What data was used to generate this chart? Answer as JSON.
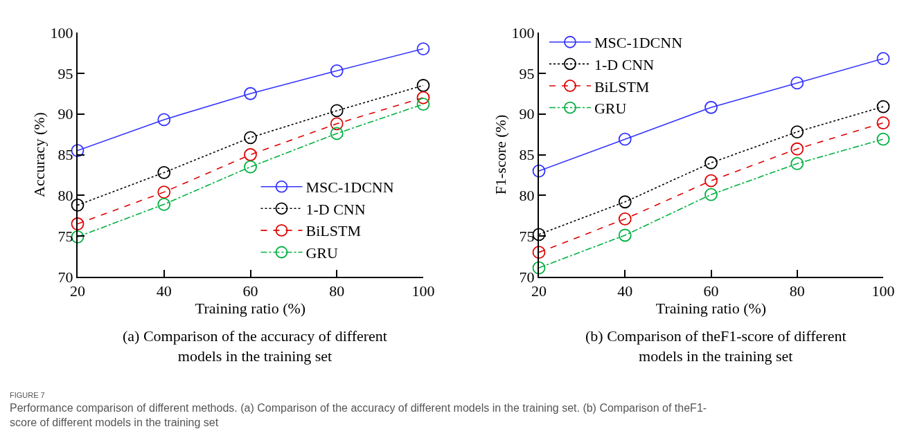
{
  "chart_data": [
    {
      "type": "line",
      "xlabel": "Training ratio (%)",
      "ylabel": "Accuracy (%)",
      "x": [
        20,
        40,
        60,
        80,
        100
      ],
      "xlim": [
        20,
        100
      ],
      "xticks": [
        20,
        40,
        60,
        80,
        100
      ],
      "ylim": [
        70,
        100
      ],
      "yticks": [
        70,
        75,
        80,
        85,
        90,
        95,
        100
      ],
      "grid": false,
      "legend": "bottom right",
      "marker": "circle",
      "series": [
        {
          "name": "MSC-1DCNN",
          "color": "#3333ff",
          "line_style": "solid",
          "values": [
            85.5,
            89.3,
            92.5,
            95.3,
            98.0
          ]
        },
        {
          "name": "1-D CNN",
          "color": "#000000",
          "line_style": "dotted",
          "values": [
            78.8,
            82.8,
            87.1,
            90.4,
            93.5
          ]
        },
        {
          "name": "BiLSTM",
          "color": "#e00000",
          "line_style": "dashed",
          "values": [
            76.5,
            80.4,
            85.0,
            88.8,
            92.0
          ]
        },
        {
          "name": "GRU",
          "color": "#00b040",
          "line_style": "dashdot",
          "values": [
            74.9,
            78.9,
            83.5,
            87.6,
            91.2
          ]
        }
      ],
      "annotations": [
        "(a) Comparison of the accuracy of different\nmodels in the training set",
        "FIGURE 7",
        "Performance comparison of different methods. (a) Comparison of the accuracy of different models in the training set. (b) Comparison of theF1-\nscore of different models in the training set"
      ]
    },
    {
      "type": "line",
      "xlabel": "Training ratio (%)",
      "ylabel": "F1-score (%)",
      "x": [
        20,
        40,
        60,
        80,
        100
      ],
      "xlim": [
        20,
        100
      ],
      "xticks": [
        20,
        40,
        60,
        80,
        100
      ],
      "ylim": [
        70,
        100
      ],
      "yticks": [
        70,
        75,
        80,
        85,
        90,
        95,
        100
      ],
      "grid": false,
      "legend": "top left",
      "marker": "circle",
      "series": [
        {
          "name": "MSC-1DCNN",
          "color": "#3333ff",
          "line_style": "solid",
          "values": [
            83.0,
            86.9,
            90.8,
            93.8,
            96.8
          ]
        },
        {
          "name": "1-D CNN",
          "color": "#000000",
          "line_style": "dotted",
          "values": [
            75.2,
            79.2,
            84.0,
            87.8,
            90.9
          ]
        },
        {
          "name": "BiLSTM",
          "color": "#e00000",
          "line_style": "dashed",
          "values": [
            73.0,
            77.1,
            81.8,
            85.7,
            88.9
          ]
        },
        {
          "name": "GRU",
          "color": "#00b040",
          "line_style": "dashdot",
          "values": [
            71.1,
            75.1,
            80.1,
            83.9,
            86.9
          ]
        }
      ],
      "annotations": [
        "(b) Comparison of theF1-score of different\nmodels in the training set"
      ]
    }
  ]
}
